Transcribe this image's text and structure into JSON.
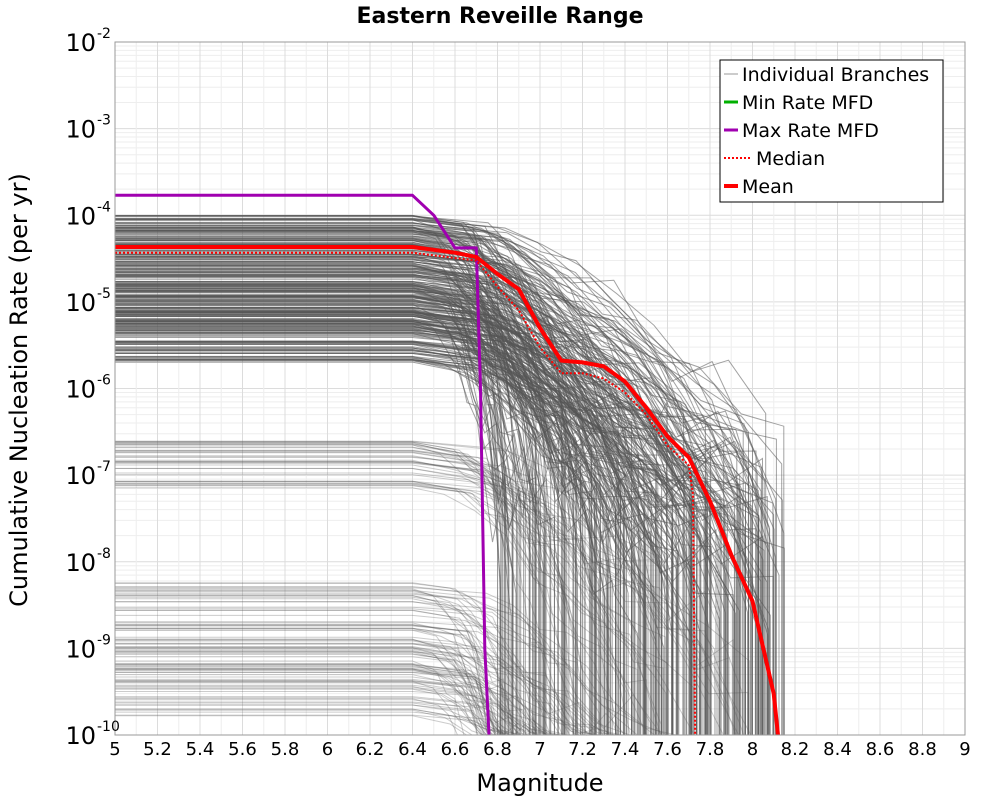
{
  "chart_data": {
    "type": "line",
    "title": "Eastern Reveille Range",
    "xlabel": "Magnitude",
    "ylabel": "Cumulative Nucleation Rate (per yr)",
    "xlim": [
      5,
      9
    ],
    "ylim": [
      1e-10,
      0.01
    ],
    "yscale": "log",
    "grid": true,
    "legend_position": "top-right",
    "x_ticks": [
      "5",
      "5.2",
      "5.4",
      "5.6",
      "5.8",
      "6",
      "6.2",
      "6.4",
      "6.6",
      "6.8",
      "7",
      "7.2",
      "7.4",
      "7.6",
      "7.8",
      "8",
      "8.2",
      "8.4",
      "8.6",
      "8.8",
      "9"
    ],
    "y_ticks": [
      {
        "base": "10",
        "exp": "-2",
        "value": 0.01
      },
      {
        "base": "10",
        "exp": "-3",
        "value": 0.001
      },
      {
        "base": "10",
        "exp": "-4",
        "value": 0.0001
      },
      {
        "base": "10",
        "exp": "-5",
        "value": 1e-05
      },
      {
        "base": "10",
        "exp": "-6",
        "value": 1e-06
      },
      {
        "base": "10",
        "exp": "-7",
        "value": 1e-07
      },
      {
        "base": "10",
        "exp": "-8",
        "value": 1e-08
      },
      {
        "base": "10",
        "exp": "-9",
        "value": 1e-09
      },
      {
        "base": "10",
        "exp": "-10",
        "value": 1e-10
      }
    ],
    "series": [
      {
        "name": "Max Rate MFD",
        "color": "#a000b0",
        "style": "solid",
        "x": [
          5.0,
          6.4,
          6.5,
          6.6,
          6.7,
          6.72,
          6.74,
          6.76
        ],
        "y": [
          0.00017,
          0.00017,
          0.0001,
          4.2e-05,
          4.2e-05,
          1e-06,
          1e-09,
          1e-10
        ]
      },
      {
        "name": "Median",
        "color": "#ff0000",
        "style": "dotted",
        "x": [
          5.0,
          6.4,
          6.6,
          6.7,
          6.8,
          6.9,
          7.0,
          7.1,
          7.2,
          7.3,
          7.4,
          7.5,
          7.6,
          7.7,
          7.72,
          7.73
        ],
        "y": [
          3.7e-05,
          3.7e-05,
          3.2e-05,
          3e-05,
          1.5e-05,
          8e-06,
          3e-06,
          1.5e-06,
          1.5e-06,
          1.3e-06,
          9e-07,
          5e-07,
          2.2e-07,
          1.3e-07,
          6e-08,
          1e-10
        ]
      },
      {
        "name": "Mean",
        "color": "#ff0000",
        "style": "solid",
        "x": [
          5.0,
          6.4,
          6.6,
          6.7,
          6.8,
          6.9,
          7.0,
          7.1,
          7.2,
          7.3,
          7.4,
          7.5,
          7.6,
          7.7,
          7.8,
          7.9,
          8.0,
          8.1,
          8.12
        ],
        "y": [
          4.3e-05,
          4.3e-05,
          3.7e-05,
          3.3e-05,
          2.1e-05,
          1.4e-05,
          5e-06,
          2.1e-06,
          2e-06,
          1.8e-06,
          1.2e-06,
          6e-07,
          2.8e-07,
          1.6e-07,
          5e-08,
          1.2e-08,
          3.5e-09,
          3e-10,
          1e-10
        ]
      },
      {
        "name": "Individual Branches",
        "color": "#555555",
        "style": "thin",
        "count": 440
      },
      {
        "name": "Min Rate MFD",
        "color": "#00b000",
        "style": "solid"
      }
    ],
    "legend": [
      "Individual Branches",
      "Min Rate MFD",
      "Max Rate MFD",
      "Median",
      "Mean"
    ]
  }
}
